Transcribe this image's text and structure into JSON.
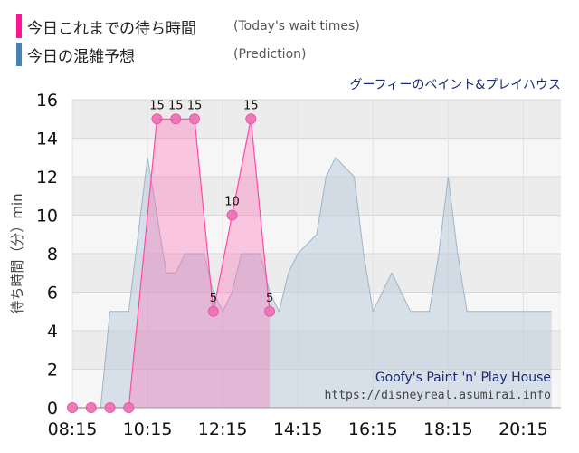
{
  "legend": {
    "today": {
      "label": "今日これまでの待ち時間",
      "note": "(Today's wait times)",
      "color": "#ff1493"
    },
    "prediction": {
      "label": "今日の混雑予想",
      "note": "(Prediction)",
      "color": "#4682b4"
    }
  },
  "attraction_title": "グーフィーのペイント&プレイハウス",
  "watermark": {
    "name": "Goofy's Paint 'n' Play House",
    "url": "https://disneyreal.asumirai.info"
  },
  "chart_data": {
    "type": "area",
    "ylabel": "待ち時間（分）min",
    "ylim": [
      0,
      16
    ],
    "yticks": [
      0,
      2,
      4,
      6,
      8,
      10,
      12,
      14,
      16
    ],
    "xlim": [
      "08:15",
      "21:15"
    ],
    "xticks": [
      "08:15",
      "10:15",
      "12:15",
      "14:15",
      "16:15",
      "18:15",
      "20:15"
    ],
    "series": [
      {
        "name": "今日の混雑予想",
        "color": "#4682b4",
        "x": [
          "08:30",
          "08:45",
          "09:00",
          "09:15",
          "09:30",
          "09:45",
          "10:00",
          "10:15",
          "10:30",
          "10:45",
          "11:00",
          "11:15",
          "11:30",
          "11:45",
          "12:00",
          "12:15",
          "12:30",
          "12:45",
          "13:00",
          "13:15",
          "13:30",
          "13:45",
          "14:00",
          "14:15",
          "14:30",
          "14:45",
          "15:00",
          "15:15",
          "15:30",
          "15:45",
          "16:00",
          "16:15",
          "16:30",
          "16:45",
          "17:00",
          "17:15",
          "17:30",
          "17:45",
          "18:00",
          "18:15",
          "18:30",
          "18:45",
          "19:00",
          "19:15",
          "19:30",
          "19:45",
          "20:00",
          "20:15",
          "20:30",
          "20:45",
          "21:00"
        ],
        "values": [
          0,
          0,
          0,
          5,
          5,
          5,
          9,
          13,
          10,
          7,
          7,
          8,
          8,
          8,
          6,
          5,
          6,
          8,
          8,
          8,
          6,
          5,
          7,
          8,
          8.5,
          9,
          12,
          13,
          12.5,
          12,
          8,
          5,
          6,
          7,
          6,
          5,
          5,
          5,
          8,
          12,
          8,
          5,
          5,
          5,
          5,
          5,
          5,
          5,
          5,
          5,
          5
        ]
      },
      {
        "name": "今日これまでの待ち時間",
        "color": "#ff1493",
        "x": [
          "08:15",
          "08:45",
          "09:15",
          "09:45",
          "10:30",
          "11:00",
          "11:30",
          "12:00",
          "12:30",
          "13:00",
          "13:30"
        ],
        "values": [
          0,
          0,
          0,
          0,
          15,
          15,
          15,
          5,
          10,
          15,
          5
        ],
        "labels": [
          "",
          "",
          "",
          "",
          "15",
          "15",
          "15",
          "5",
          "10",
          "15",
          "5"
        ]
      }
    ]
  }
}
